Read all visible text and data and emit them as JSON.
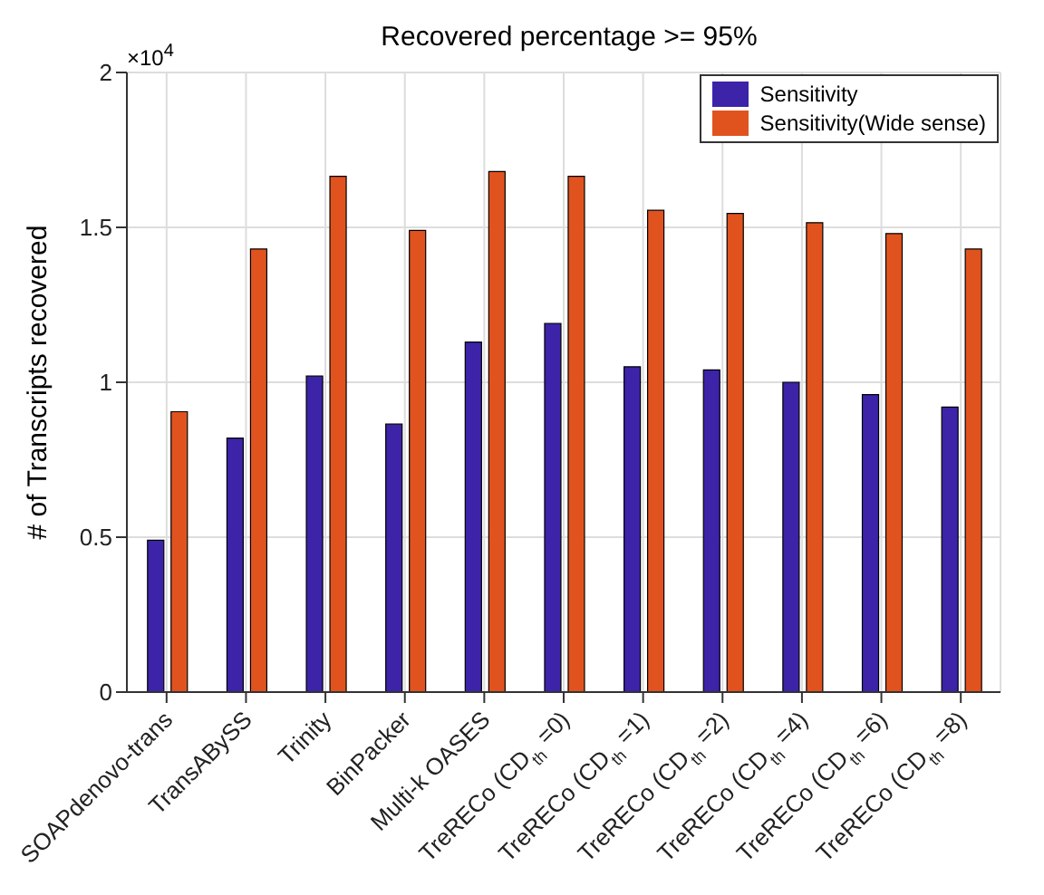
{
  "chart_data": {
    "type": "bar",
    "title": "Recovered percentage >= 95%",
    "ylabel": "# of Transcripts recovered",
    "annotations": [
      "×10$^{4}$"
    ],
    "categories": [
      "SOAPdenovo-trans",
      "TransABySS",
      "Trinity",
      "BinPacker",
      "Multi-k OASES",
      "TreRECo (CD$_{th}$ =0)",
      "TreRECo (CD$_{th}$ =1)",
      "TreRECo (CD$_{th}$ =2)",
      "TreRECo (CD$_{th}$ =4)",
      "TreRECo (CD$_{th}$ =6)",
      "TreRECo (CD$_{th}$ =8)"
    ],
    "series": [
      {
        "name": "Sensitivity",
        "color": "#3c23a8",
        "values": [
          0.49,
          0.82,
          1.02,
          0.865,
          1.13,
          1.19,
          1.05,
          1.04,
          1.0,
          0.96,
          0.92
        ]
      },
      {
        "name": "Sensitivity(Wide sense)",
        "color": "#e0531f",
        "values": [
          0.905,
          1.43,
          1.665,
          1.49,
          1.68,
          1.665,
          1.555,
          1.545,
          1.515,
          1.48,
          1.43
        ]
      }
    ],
    "ylim": [
      0,
      2
    ],
    "yticks": [
      0,
      0.5,
      1,
      1.5,
      2
    ],
    "grid": true,
    "legend": "top right"
  }
}
